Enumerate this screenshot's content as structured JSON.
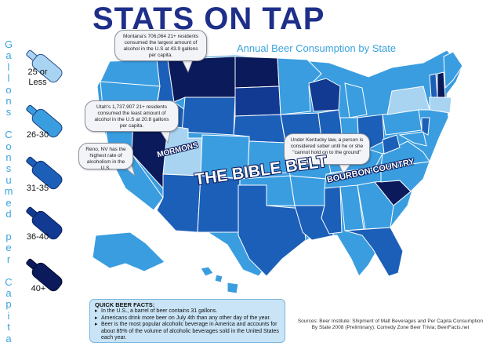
{
  "title": "STATS ON TAP",
  "subtitle": "Annual Beer Consumption by State",
  "vertical_label": [
    "G",
    "a",
    "l",
    "l",
    "o",
    "n",
    "s",
    " ",
    "C",
    "o",
    "n",
    "s",
    "u",
    "m",
    "e",
    "d",
    " ",
    "p",
    "e",
    "r",
    " ",
    "C",
    "a",
    "p",
    "i",
    "t",
    "a"
  ],
  "legend": [
    {
      "label_line1": "25 or",
      "label_line2": "Less",
      "color": "#a8d4f2"
    },
    {
      "label_line1": "26-30",
      "label_line2": "",
      "color": "#3a9de0"
    },
    {
      "label_line1": "31-35",
      "label_line2": "",
      "color": "#1c5fb8"
    },
    {
      "label_line1": "36-40",
      "label_line2": "",
      "color": "#123a92"
    },
    {
      "label_line1": "40+",
      "label_line2": "",
      "color": "#0a1a5a"
    }
  ],
  "callouts": {
    "montana": "Montana's 706,064 21+ residents consumed the largest amount of alcohol in the U.S at 43.9 gallons per capita.",
    "utah": "Utah's 1,737,907 21+ residents consumed the least amount of alcohol in the U.S at 20.8 gallons per capita.",
    "reno": "Reno, NV has the highest rate of alcoholism in the U.S.",
    "kentucky": "Under Kentucky law, a person is considered sober until he or she \"cannot hold on to the ground\""
  },
  "overlays": {
    "mormons": "MORMONS",
    "bible_belt": "THE BIBLE BELT",
    "bourbon": "BOURBON COUNTRY"
  },
  "facts": {
    "heading": "QUICK BEER FACTS:",
    "items": [
      "In the U.S., a barrel of beer contains 31 gallons.",
      "Americans drink more beer on July 4th than any other day of the year.",
      "Beer is the most popular alcoholic beverage in America and accounts for about 85% of the volume of alcoholic beverages sold in the United States each year."
    ]
  },
  "sources": "Sources: Beer Institute: Shipment of Malt Beverages and Per Capita Consumption By State 2008 (Preliminary); Comedy Zone Beer Trivia; BeerFacts.net"
}
